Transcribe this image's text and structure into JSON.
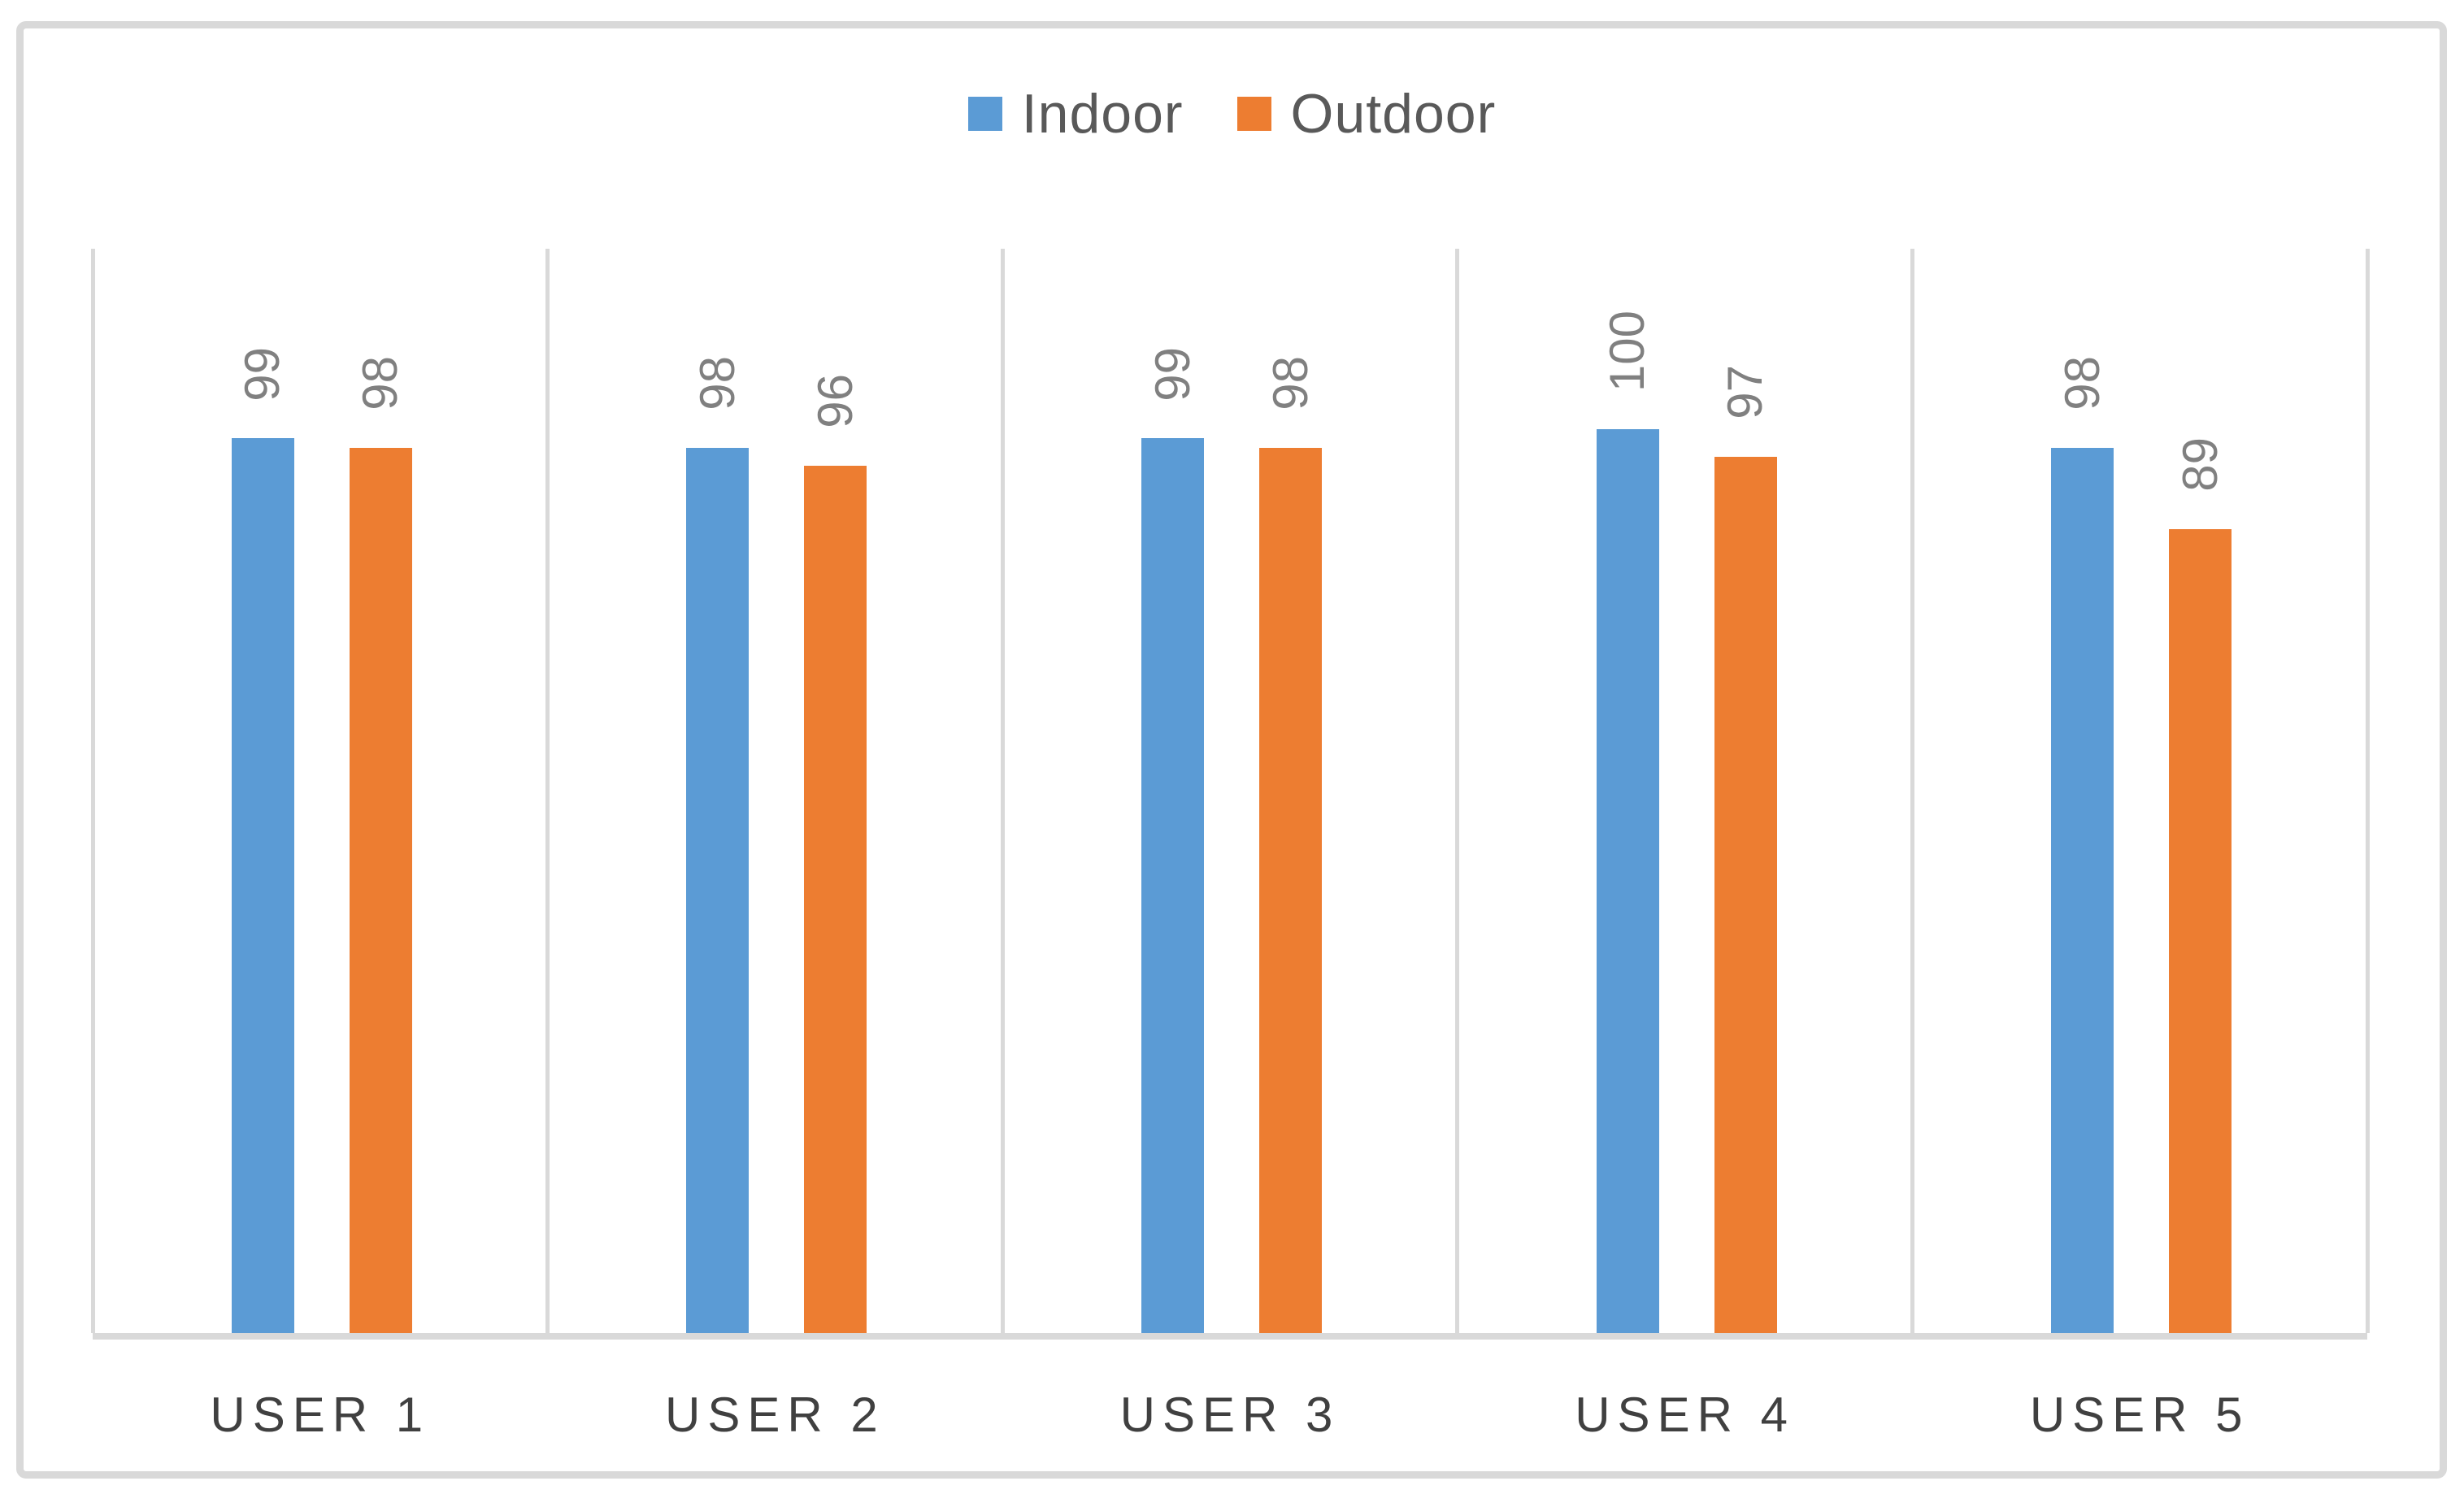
{
  "chart_data": {
    "type": "bar",
    "title": "",
    "categories": [
      "USER 1",
      "USER 2",
      "USER 3",
      "USER 4",
      "USER 5"
    ],
    "series": [
      {
        "name": "Indoor",
        "color": "#5B9BD5",
        "values": [
          99,
          98,
          99,
          100,
          98
        ]
      },
      {
        "name": "Outdoor",
        "color": "#ED7D31",
        "values": [
          98,
          96,
          98,
          97,
          89
        ]
      }
    ],
    "xlabel": "",
    "ylabel": "",
    "ylim": [
      0,
      120
    ],
    "legend_position": "top-center",
    "grid": "vertical category separator lines only, no horizontal gridlines, no y-axis tick labels",
    "data_labels": {
      "visible": true,
      "rotation_deg": -90,
      "color": "#808080"
    }
  },
  "colors": {
    "background": "#FFFFFF",
    "frame_border": "#D9D9D9",
    "axis_and_grid": "#D9D9D9",
    "category_label": "#404040",
    "legend_text": "#595959",
    "value_label": "#808080"
  }
}
